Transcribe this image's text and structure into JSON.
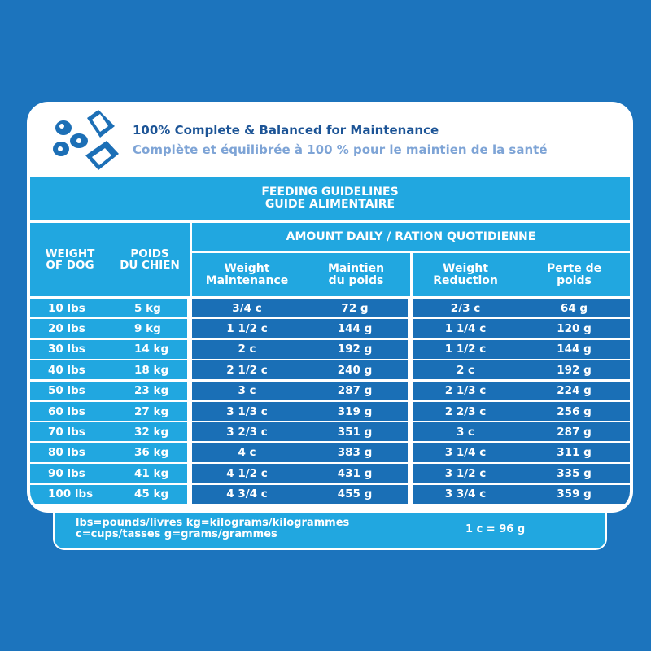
{
  "header": {
    "title_en": "100% Complete & Balanced for Maintenance",
    "title_fr": "Complète et équilibrée à 100 % pour le maintien de la santé"
  },
  "icons": [
    "pet-food-bowl-icon",
    "kibble-icon"
  ],
  "table": {
    "title_en": "FEEDING GUIDELINES",
    "title_fr": "GUIDE ALIMENTAIRE",
    "col_weight_en": "WEIGHT OF DOG",
    "col_weight_fr": "POIDS DU CHIEN",
    "amount_header": "AMOUNT DAILY / RATION QUOTIDIENNE",
    "sub": [
      "Weight Maintenance",
      "Maintien du poids",
      "Weight Reduction",
      "Perte de poids"
    ],
    "rows": [
      [
        "10 lbs",
        "5 kg",
        "3/4 c",
        "72 g",
        "2/3 c",
        "64 g"
      ],
      [
        "20 lbs",
        "9 kg",
        "1 1/2 c",
        "144 g",
        "1 1/4 c",
        "120 g"
      ],
      [
        "30 lbs",
        "14 kg",
        "2 c",
        "192 g",
        "1 1/2 c",
        "144 g"
      ],
      [
        "40 lbs",
        "18 kg",
        "2 1/2 c",
        "240 g",
        "2 c",
        "192 g"
      ],
      [
        "50 lbs",
        "23 kg",
        "3 c",
        "287 g",
        "2 1/3 c",
        "224 g"
      ],
      [
        "60 lbs",
        "27 kg",
        "3 1/3 c",
        "319 g",
        "2 2/3 c",
        "256 g"
      ],
      [
        "70 lbs",
        "32 kg",
        "3 2/3 c",
        "351 g",
        "3 c",
        "287 g"
      ],
      [
        "80 lbs",
        "36 kg",
        "4 c",
        "383 g",
        "3 1/4 c",
        "311 g"
      ],
      [
        "90 lbs",
        "41 kg",
        "4 1/2 c",
        "431 g",
        "3 1/2 c",
        "335 g"
      ],
      [
        "100 lbs",
        "45 kg",
        "4 3/4 c",
        "455 g",
        "3 3/4 c",
        "359 g"
      ]
    ]
  },
  "footer": {
    "line1": "lbs=pounds/livres kg=kilograms/kilogrammes",
    "line2": "c=cups/tasses g=grams/grammes",
    "conversion": "1 c = 96 g"
  },
  "colors": {
    "background": "#1c74bd",
    "light_blue": "#21a7e0",
    "dark_blue": "#1a6fb6",
    "heading": "#1c5496"
  }
}
